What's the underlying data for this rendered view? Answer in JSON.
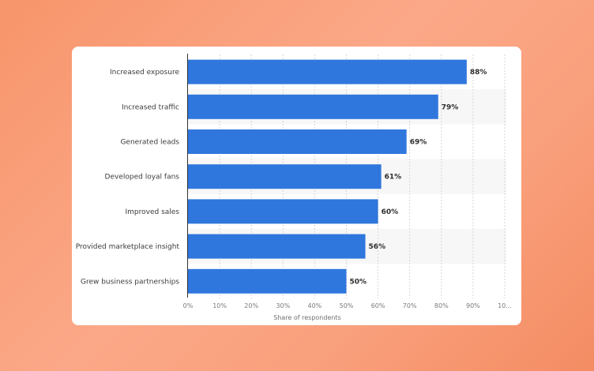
{
  "chart_data": {
    "type": "bar",
    "orientation": "horizontal",
    "categories": [
      "Increased exposure",
      "Increased traffic",
      "Generated leads",
      "Developed loyal fans",
      "Improved sales",
      "Provided marketplace insight",
      "Grew business partnerships"
    ],
    "values": [
      88,
      79,
      69,
      61,
      60,
      56,
      50
    ],
    "value_labels": [
      "88%",
      "79%",
      "69%",
      "61%",
      "60%",
      "56%",
      "50%"
    ],
    "xlabel": "Share of respondents",
    "xlim": [
      0,
      100
    ],
    "x_ticks": [
      "0%",
      "10%",
      "20%",
      "30%",
      "40%",
      "50%",
      "60%",
      "70%",
      "80%",
      "90%",
      "10..."
    ],
    "grid": true,
    "colors": {
      "bar": "#2f77dd",
      "grid": "#d6d6d6",
      "band": "#f7f7f7",
      "background": "#f79a72"
    }
  }
}
